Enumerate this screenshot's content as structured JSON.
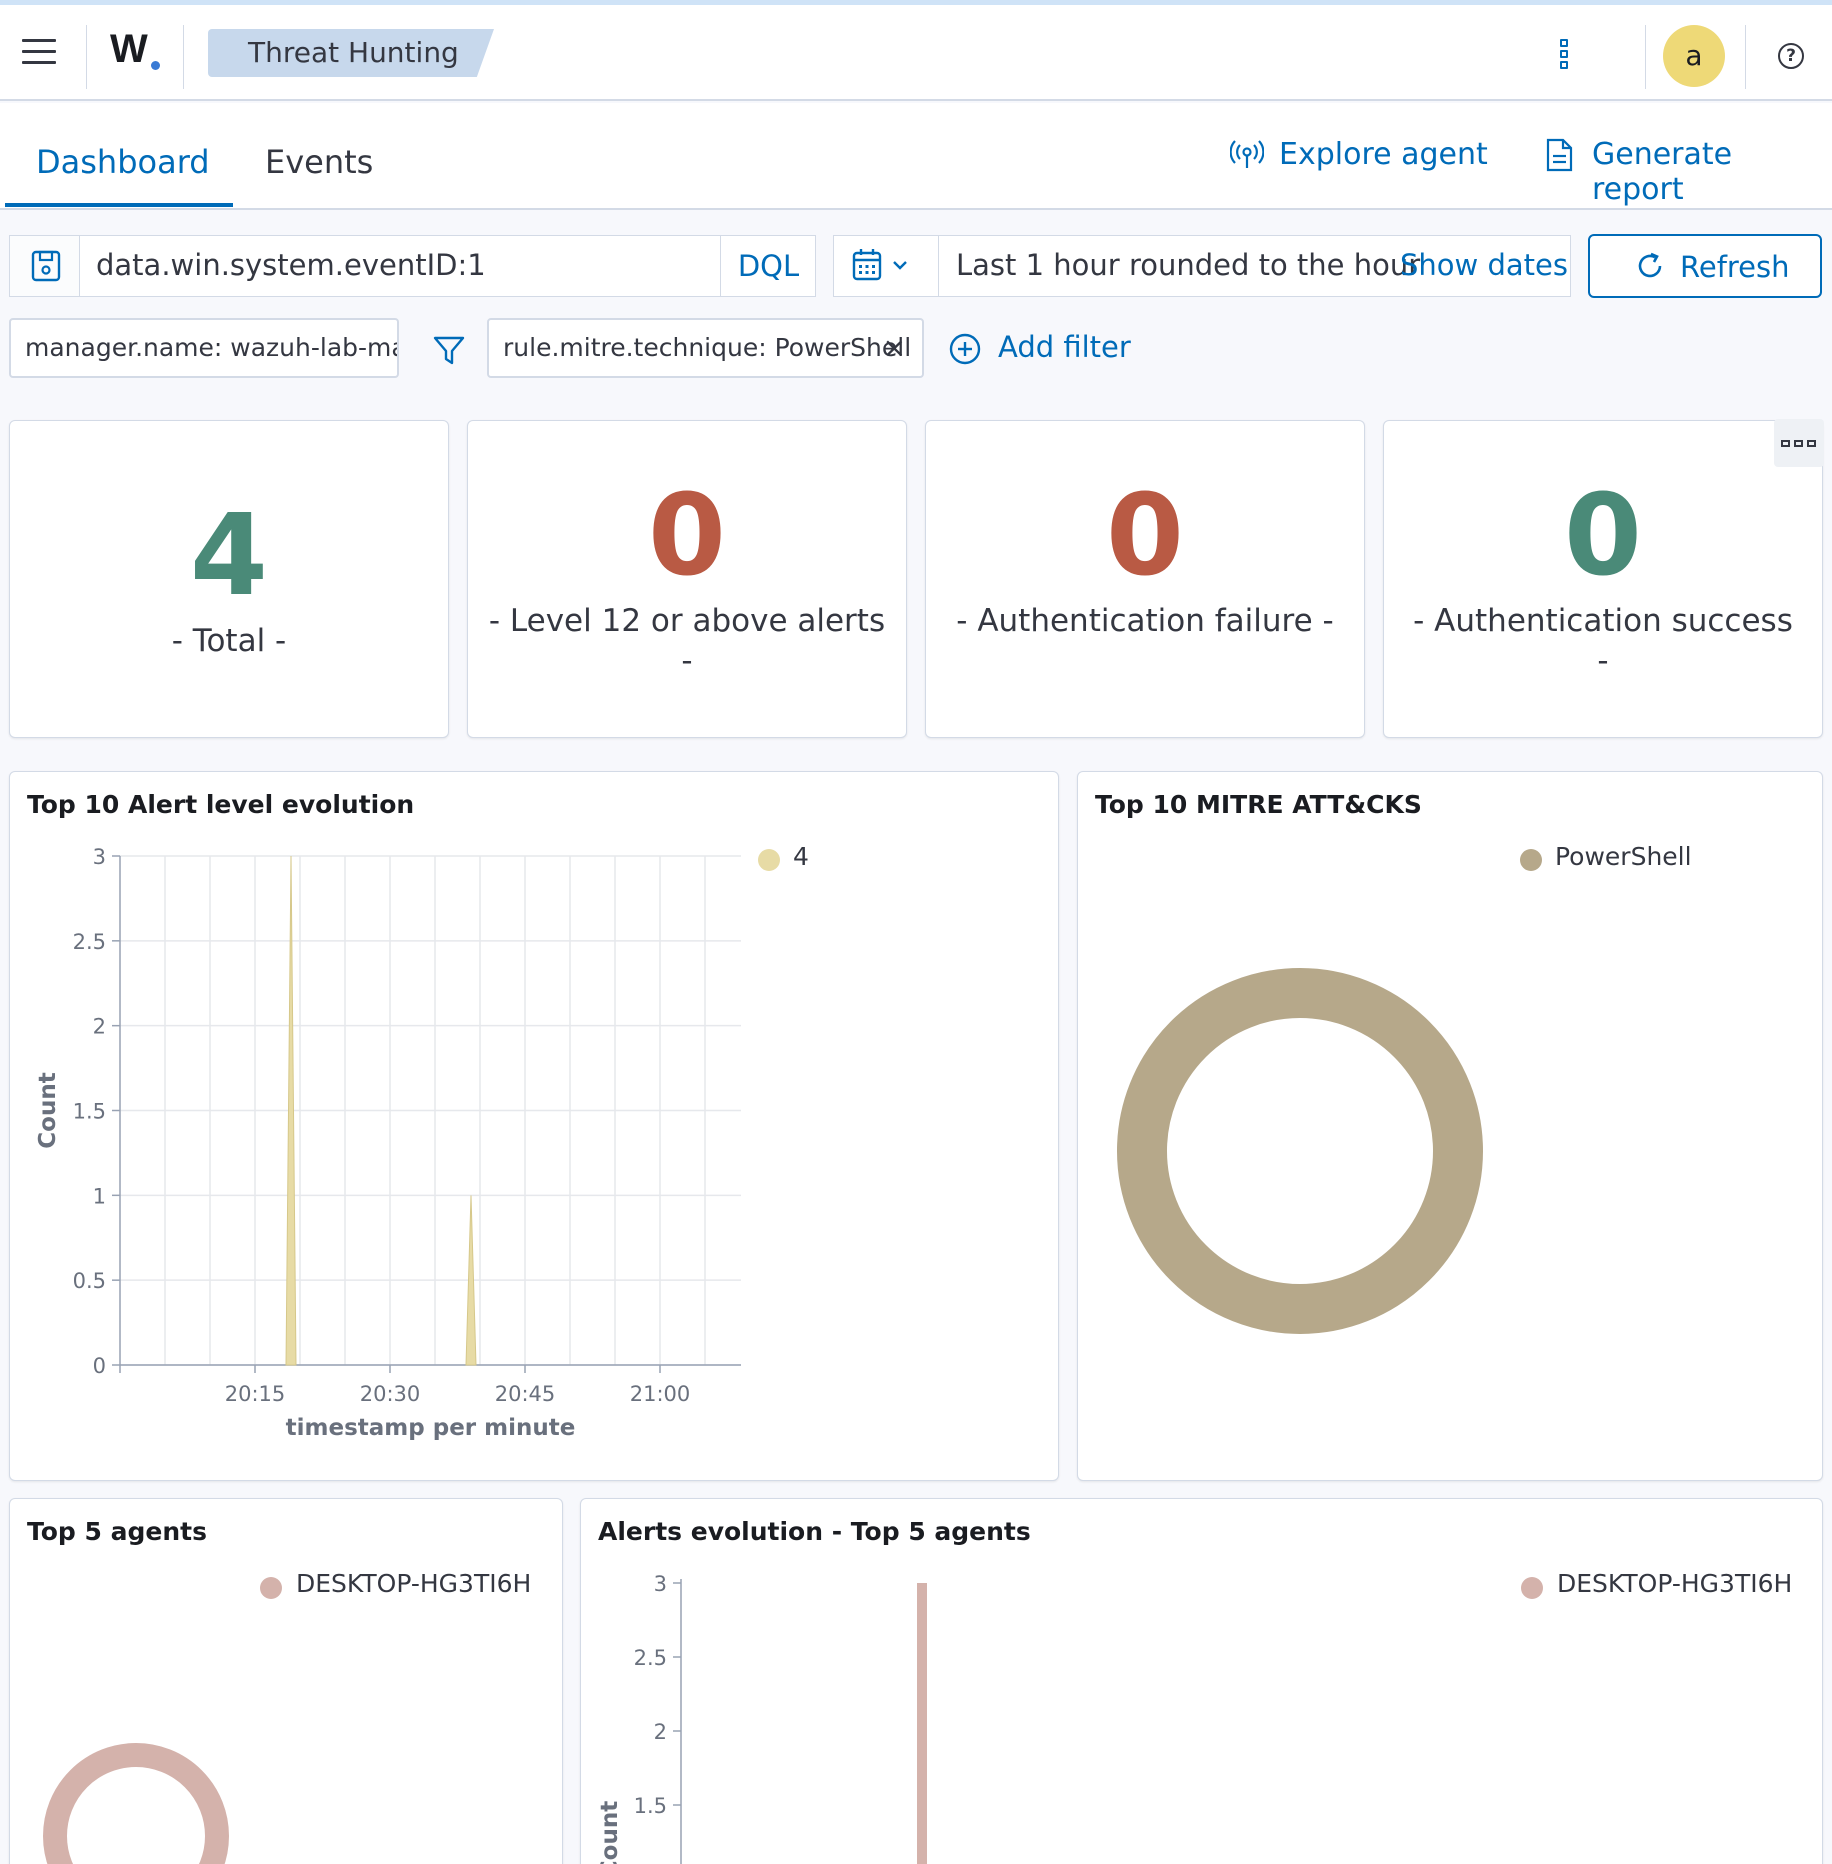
{
  "header": {
    "logo": "W",
    "breadcrumb": "Threat Hunting",
    "avatar_initial": "a",
    "help_glyph": "?"
  },
  "tabs": [
    {
      "label": "Dashboard",
      "active": true
    },
    {
      "label": "Events",
      "active": false
    }
  ],
  "actions": {
    "explore_agent": "Explore agent",
    "generate_report": "Generate report"
  },
  "search": {
    "query": "data.win.system.eventID:1",
    "language": "DQL",
    "time_range": "Last 1 hour rounded to the hour",
    "show_dates": "Show dates",
    "refresh": "Refresh"
  },
  "filters": [
    {
      "label": "manager.name: wazuh-lab-mac"
    },
    {
      "label": "rule.mitre.technique: PowerShell"
    }
  ],
  "add_filter": "Add filter",
  "metrics": [
    {
      "value": "4",
      "label": "- Total -",
      "color": "#4a8a78"
    },
    {
      "value": "0",
      "label": "- Level 12 or above alerts -",
      "color": "#b95a44"
    },
    {
      "value": "0",
      "label": "- Authentication failure -",
      "color": "#b95a44"
    },
    {
      "value": "0",
      "label": "- Authentication success -",
      "color": "#4a8a78"
    }
  ],
  "panels": {
    "alert_level": {
      "title": "Top 10 Alert level evolution"
    },
    "mitre": {
      "title": "Top 10 MITRE ATT&CKS"
    },
    "top_agents": {
      "title": "Top 5 agents"
    },
    "agents_evolution": {
      "title": "Alerts evolution - Top 5 agents"
    }
  },
  "chart_data": [
    {
      "type": "area",
      "title": "Top 10 Alert level evolution",
      "xlabel": "timestamp per minute",
      "ylabel": "Count",
      "x_ticks": [
        "20:15",
        "20:30",
        "20:45",
        "21:00"
      ],
      "y_ticks": [
        "0",
        "0.5",
        "1",
        "1.5",
        "2",
        "2.5",
        "3"
      ],
      "ylim": [
        0,
        3
      ],
      "xlim": [
        "20:00",
        "21:09"
      ],
      "series": [
        {
          "name": "4",
          "color": "#e7dba5",
          "points": [
            {
              "x": "20:19",
              "y": 3
            },
            {
              "x": "20:39",
              "y": 1
            }
          ]
        }
      ]
    },
    {
      "type": "pie",
      "title": "Top 10 MITRE ATT&CKS",
      "slices": [
        {
          "label": "PowerShell",
          "value": 4,
          "color": "#b6a88a"
        }
      ]
    },
    {
      "type": "pie",
      "title": "Top 5 agents",
      "slices": [
        {
          "label": "DESKTOP-HG3TI6H",
          "value": 4,
          "color": "#d4b2ab"
        }
      ]
    },
    {
      "type": "bar",
      "title": "Alerts evolution - Top 5 agents",
      "ylabel": "Count",
      "y_ticks": [
        "1.5",
        "2",
        "2.5",
        "3"
      ],
      "ylim": [
        0,
        3
      ],
      "series": [
        {
          "name": "DESKTOP-HG3TI6H",
          "color": "#d4b2ab",
          "values": [
            3
          ]
        }
      ]
    }
  ]
}
